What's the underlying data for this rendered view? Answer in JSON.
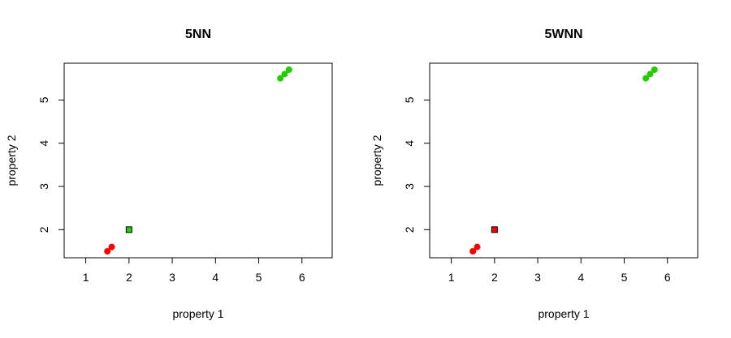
{
  "colors": {
    "red": "#ff0000",
    "green": "#22cc00",
    "axis": "#000000"
  },
  "chart_data": [
    {
      "type": "scatter",
      "title": "5NN",
      "xlabel": "property 1",
      "ylabel": "property 2",
      "xlim": [
        0.5,
        6.7
      ],
      "ylim": [
        1.35,
        5.85
      ],
      "xticks": [
        1,
        2,
        3,
        4,
        5,
        6
      ],
      "yticks": [
        2,
        3,
        4,
        5
      ],
      "grid": false,
      "series": [
        {
          "color": "#ff0000",
          "marker": "circle",
          "points": [
            [
              1.5,
              1.5
            ],
            [
              1.6,
              1.6
            ]
          ]
        },
        {
          "color": "#22cc00",
          "marker": "circle",
          "points": [
            [
              5.5,
              5.5
            ],
            [
              5.6,
              5.6
            ],
            [
              5.7,
              5.7
            ]
          ]
        },
        {
          "color": "#22cc00",
          "marker": "square",
          "points": [
            [
              2.0,
              2.0
            ]
          ]
        }
      ]
    },
    {
      "type": "scatter",
      "title": "5WNN",
      "xlabel": "property 1",
      "ylabel": "property 2",
      "xlim": [
        0.5,
        6.7
      ],
      "ylim": [
        1.35,
        5.85
      ],
      "xticks": [
        1,
        2,
        3,
        4,
        5,
        6
      ],
      "yticks": [
        2,
        3,
        4,
        5
      ],
      "grid": false,
      "series": [
        {
          "color": "#ff0000",
          "marker": "circle",
          "points": [
            [
              1.5,
              1.5
            ],
            [
              1.6,
              1.6
            ]
          ]
        },
        {
          "color": "#22cc00",
          "marker": "circle",
          "points": [
            [
              5.5,
              5.5
            ],
            [
              5.6,
              5.6
            ],
            [
              5.7,
              5.7
            ]
          ]
        },
        {
          "color": "#ff0000",
          "marker": "square",
          "points": [
            [
              2.0,
              2.0
            ]
          ]
        }
      ]
    }
  ]
}
